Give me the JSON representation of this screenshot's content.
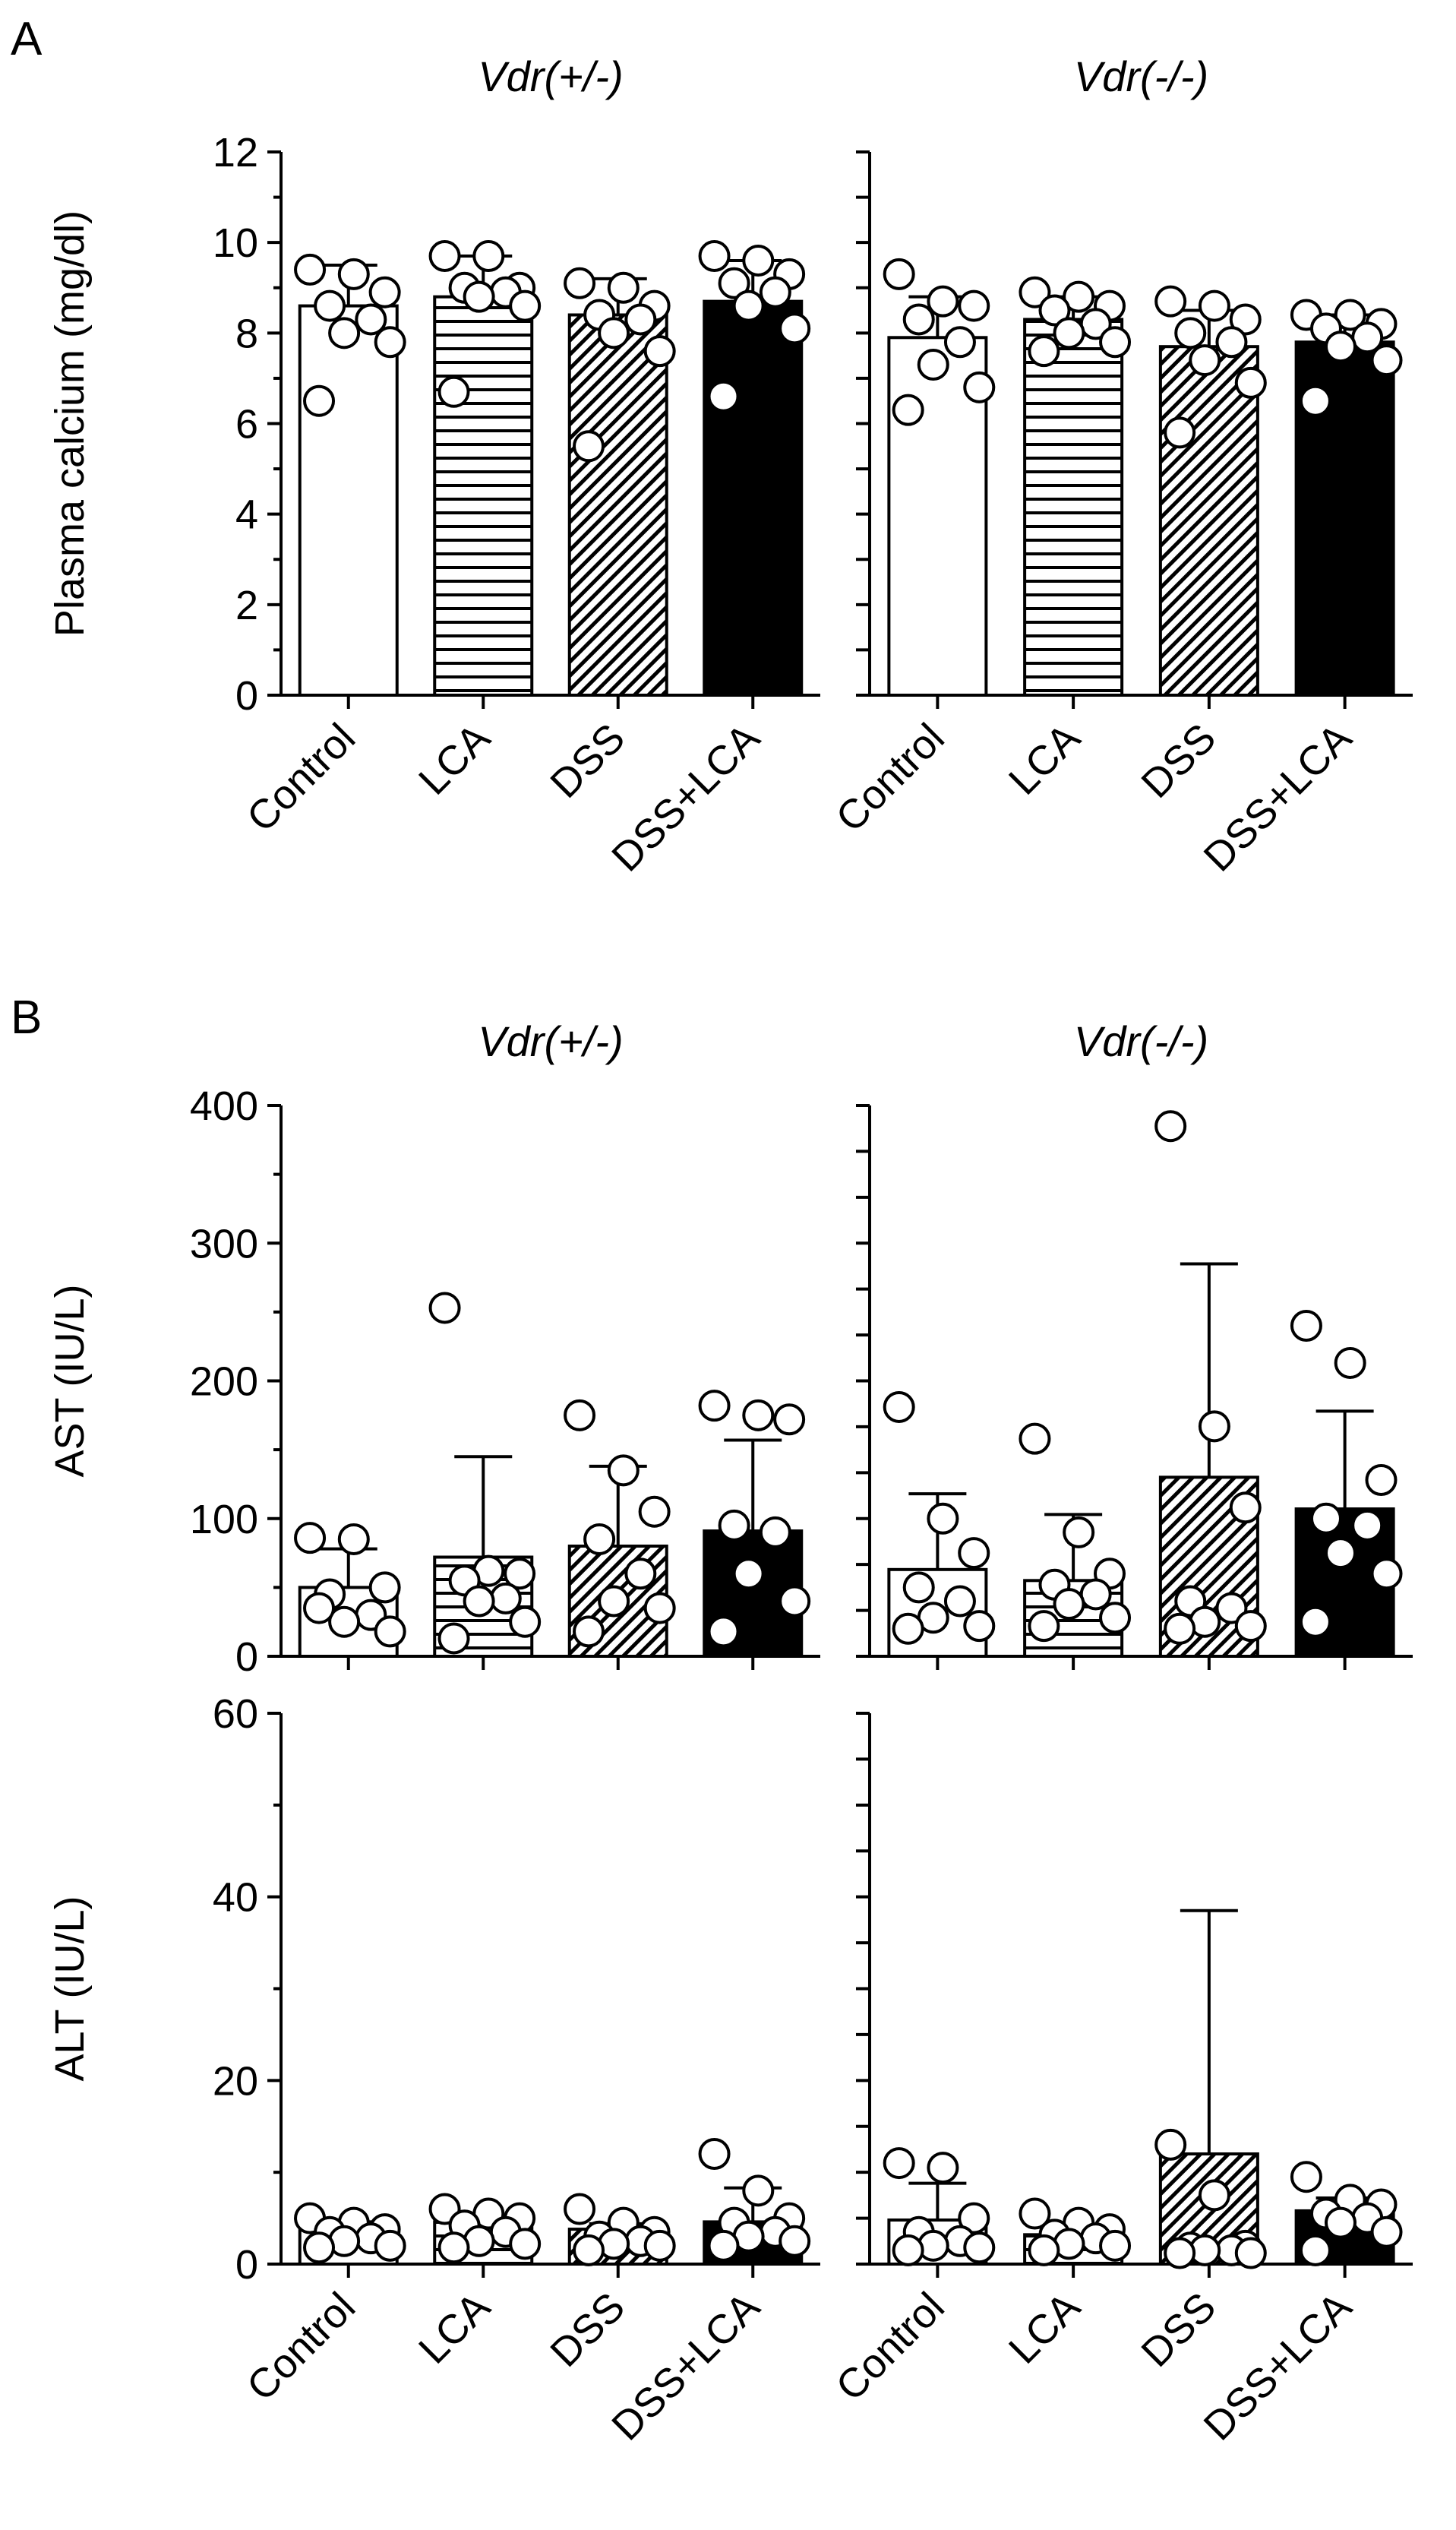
{
  "panels": {
    "A": {
      "letter": "A"
    },
    "B": {
      "letter": "B"
    }
  },
  "colors": {
    "open": "#ffffff",
    "solid": "#000000",
    "stroke": "#000000"
  },
  "chart_data": [
    {
      "type": "bar",
      "panel": "A",
      "title": "Vdr(+/-)",
      "ylabel": "Plasma calcium (mg/dl)",
      "ylim": [
        0,
        12
      ],
      "yticks": [
        0,
        2,
        4,
        6,
        8,
        10,
        12
      ],
      "categories": [
        "Control",
        "LCA",
        "DSS",
        "DSS+LCA"
      ],
      "fills": [
        "open",
        "horizontal-stripes",
        "diagonal-hatch",
        "solid"
      ],
      "values": [
        8.6,
        8.8,
        8.4,
        8.7
      ],
      "error_upper": [
        9.5,
        9.7,
        9.2,
        9.6
      ],
      "points": [
        [
          9.4,
          9.3,
          8.9,
          8.6,
          8.3,
          8.0,
          7.8,
          6.5
        ],
        [
          9.7,
          9.7,
          9.0,
          9.0,
          8.9,
          8.8,
          8.6,
          6.7
        ],
        [
          9.1,
          9.0,
          8.6,
          8.4,
          8.3,
          8.0,
          7.6,
          5.5
        ],
        [
          9.7,
          9.6,
          9.3,
          9.1,
          8.9,
          8.6,
          8.1,
          6.6
        ]
      ],
      "point_style": [
        "open",
        "open",
        "open",
        "open"
      ],
      "show_xlabels": true
    },
    {
      "type": "bar",
      "panel": "A",
      "title": "Vdr(-/-)",
      "ylabel": "",
      "ylim": [
        0,
        12
      ],
      "categories": [
        "Control",
        "LCA",
        "DSS",
        "DSS+LCA"
      ],
      "fills": [
        "open",
        "horizontal-stripes",
        "diagonal-hatch",
        "solid"
      ],
      "values": [
        7.9,
        8.3,
        7.7,
        7.8
      ],
      "error_upper": [
        8.8,
        8.8,
        8.5,
        8.4
      ],
      "points": [
        [
          9.3,
          8.7,
          8.6,
          8.3,
          7.8,
          7.3,
          6.8,
          6.3
        ],
        [
          8.9,
          8.8,
          8.6,
          8.5,
          8.2,
          8.0,
          7.8,
          7.6
        ],
        [
          8.7,
          8.6,
          8.3,
          8.0,
          7.8,
          7.4,
          6.9,
          5.8
        ],
        [
          8.4,
          8.4,
          8.2,
          8.1,
          7.9,
          7.7,
          7.4,
          6.5
        ]
      ],
      "point_style": [
        "open",
        "open",
        "open",
        "filled"
      ],
      "show_xlabels": true
    },
    {
      "type": "bar",
      "panel": "B",
      "title": "Vdr(+/-)",
      "ylabel": "AST (IU/L)",
      "ylim": [
        0,
        400
      ],
      "yticks": [
        0,
        100,
        200,
        300,
        400
      ],
      "categories": [
        "Control",
        "LCA",
        "DSS",
        "DSS+LCA"
      ],
      "fills": [
        "open",
        "horizontal-stripes",
        "diagonal-hatch",
        "solid"
      ],
      "values": [
        50,
        72,
        80,
        91
      ],
      "error_upper": [
        78,
        145,
        138,
        157
      ],
      "points": [
        [
          86,
          85,
          50,
          45,
          30,
          25,
          18,
          35
        ],
        [
          253,
          62,
          60,
          55,
          42,
          40,
          25,
          13
        ],
        [
          175,
          135,
          105,
          85,
          60,
          40,
          35,
          18
        ],
        [
          182,
          175,
          172,
          95,
          90,
          60,
          40,
          18
        ]
      ],
      "point_style": [
        "open",
        "open",
        "open",
        "open"
      ],
      "show_xlabels": false
    },
    {
      "type": "bar",
      "panel": "B",
      "title": "Vdr(-/-)",
      "ylabel": "",
      "ylim": [
        0,
        400
      ],
      "categories": [
        "Control",
        "LCA",
        "DSS",
        "DSS+LCA"
      ],
      "fills": [
        "open",
        "horizontal-stripes",
        "diagonal-hatch",
        "solid"
      ],
      "values": [
        63,
        55,
        130,
        107
      ],
      "error_upper": [
        118,
        103,
        285,
        178
      ],
      "points": [
        [
          181,
          100,
          75,
          50,
          40,
          28,
          22,
          20
        ],
        [
          158,
          90,
          60,
          52,
          45,
          38,
          28,
          22
        ],
        [
          385,
          167,
          108,
          40,
          35,
          25,
          22,
          20
        ],
        [
          240,
          213,
          128,
          100,
          95,
          75,
          60,
          25
        ]
      ],
      "point_style": [
        "open",
        "open",
        "open",
        "open"
      ],
      "show_xlabels": false
    },
    {
      "type": "bar",
      "panel": "B",
      "title": "",
      "ylabel": "ALT (IU/L)",
      "ylim": [
        0,
        60
      ],
      "yticks": [
        0,
        20,
        40,
        60
      ],
      "categories": [
        "Control",
        "LCA",
        "DSS",
        "DSS+LCA"
      ],
      "fills": [
        "open",
        "horizontal-stripes",
        "diagonal-hatch",
        "solid"
      ],
      "values": [
        4.3,
        4.6,
        3.8,
        4.6
      ],
      "error_upper": [
        4.6,
        5.2,
        4.4,
        8.3
      ],
      "points": [
        [
          5,
          4.5,
          3.8,
          3.5,
          2.8,
          2.5,
          2,
          1.8
        ],
        [
          6,
          5.5,
          5,
          4.2,
          3.5,
          2.5,
          2.2,
          1.8
        ],
        [
          6,
          4.5,
          3.5,
          3,
          2.5,
          2.2,
          2,
          1.5
        ],
        [
          12,
          8,
          5,
          4.5,
          3.5,
          3,
          2.5,
          2
        ]
      ],
      "point_style": [
        "open",
        "open",
        "open",
        "open"
      ],
      "show_xlabels": true
    },
    {
      "type": "bar",
      "panel": "B",
      "title": "",
      "ylabel": "",
      "ylim": [
        0,
        60
      ],
      "categories": [
        "Control",
        "LCA",
        "DSS",
        "DSS+LCA"
      ],
      "fills": [
        "open",
        "horizontal-stripes",
        "diagonal-hatch",
        "solid"
      ],
      "values": [
        4.8,
        3.2,
        12,
        5.8
      ],
      "error_upper": [
        8.8,
        4.2,
        38.5,
        7.2
      ],
      "points": [
        [
          11,
          10.5,
          5,
          3.5,
          2.5,
          2,
          1.8,
          1.5
        ],
        [
          5.5,
          4.5,
          3.8,
          3.2,
          2.8,
          2.2,
          2,
          1.5
        ],
        [
          13,
          7.5,
          2,
          1.8,
          1.5,
          1.5,
          1.2,
          1.2
        ],
        [
          9.5,
          7,
          6.5,
          5.5,
          5,
          4.5,
          3.5,
          1.5
        ]
      ],
      "point_style": [
        "open",
        "open",
        "open",
        "filled"
      ],
      "show_xlabels": true
    }
  ]
}
